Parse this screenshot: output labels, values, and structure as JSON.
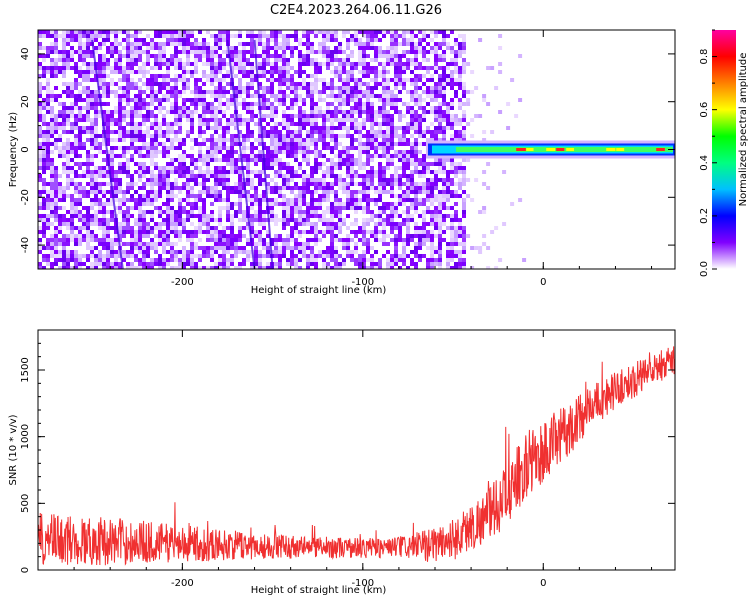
{
  "title": "C2E4.2023.264.06.11.G26",
  "chart_data": [
    {
      "type": "heatmap",
      "xlabel": "Height of straight line (km)",
      "ylabel": "Frequency (Hz)",
      "xlim": [
        -280,
        73
      ],
      "ylim": [
        -50,
        50
      ],
      "xticks": [
        -200,
        -100,
        0
      ],
      "yticks": [
        -40,
        -20,
        0,
        20,
        40
      ],
      "colorbar": {
        "label": "Normalized spectral amplitude",
        "range": [
          0,
          0.9
        ],
        "ticks": [
          0.0,
          0.2,
          0.4,
          0.6,
          0.8
        ],
        "colormap": [
          "#ffffff",
          "#8000ff",
          "#0000ff",
          "#00c0ff",
          "#00ff80",
          "#00ff00",
          "#ffff00",
          "#ff8000",
          "#ff0000",
          "#ff00a0"
        ]
      },
      "features": {
        "noise_region_x": [
          -280,
          -45
        ],
        "scattered_region_x": [
          -45,
          -10
        ],
        "signal_band_x": [
          -65,
          73
        ],
        "signal_band_frequency_hz": 0
      }
    },
    {
      "type": "line",
      "xlabel": "Height of straight line (km)",
      "ylabel": "SNR (10 * v/v)",
      "xlim": [
        -280,
        73
      ],
      "ylim": [
        0,
        1800
      ],
      "xticks": [
        -200,
        -100,
        0
      ],
      "yticks": [
        0,
        500,
        1000,
        1500
      ],
      "series": [
        {
          "color": "#f03030",
          "x": [
            -280,
            -260,
            -240,
            -220,
            -200,
            -180,
            -160,
            -140,
            -120,
            -100,
            -80,
            -65,
            -50,
            -40,
            -30,
            -20,
            -10,
            0,
            10,
            20,
            30,
            40,
            50,
            60,
            73
          ],
          "values": [
            230,
            220,
            215,
            210,
            200,
            190,
            180,
            175,
            170,
            165,
            170,
            180,
            230,
            320,
            420,
            560,
            780,
            880,
            1000,
            1140,
            1260,
            1350,
            1420,
            1500,
            1580
          ],
          "noise_amplitude": [
            200,
            190,
            180,
            160,
            140,
            120,
            100,
            90,
            80,
            80,
            80,
            120,
            160,
            180,
            200,
            230,
            250,
            250,
            220,
            180,
            160,
            140,
            130,
            130,
            120
          ]
        }
      ]
    }
  ]
}
